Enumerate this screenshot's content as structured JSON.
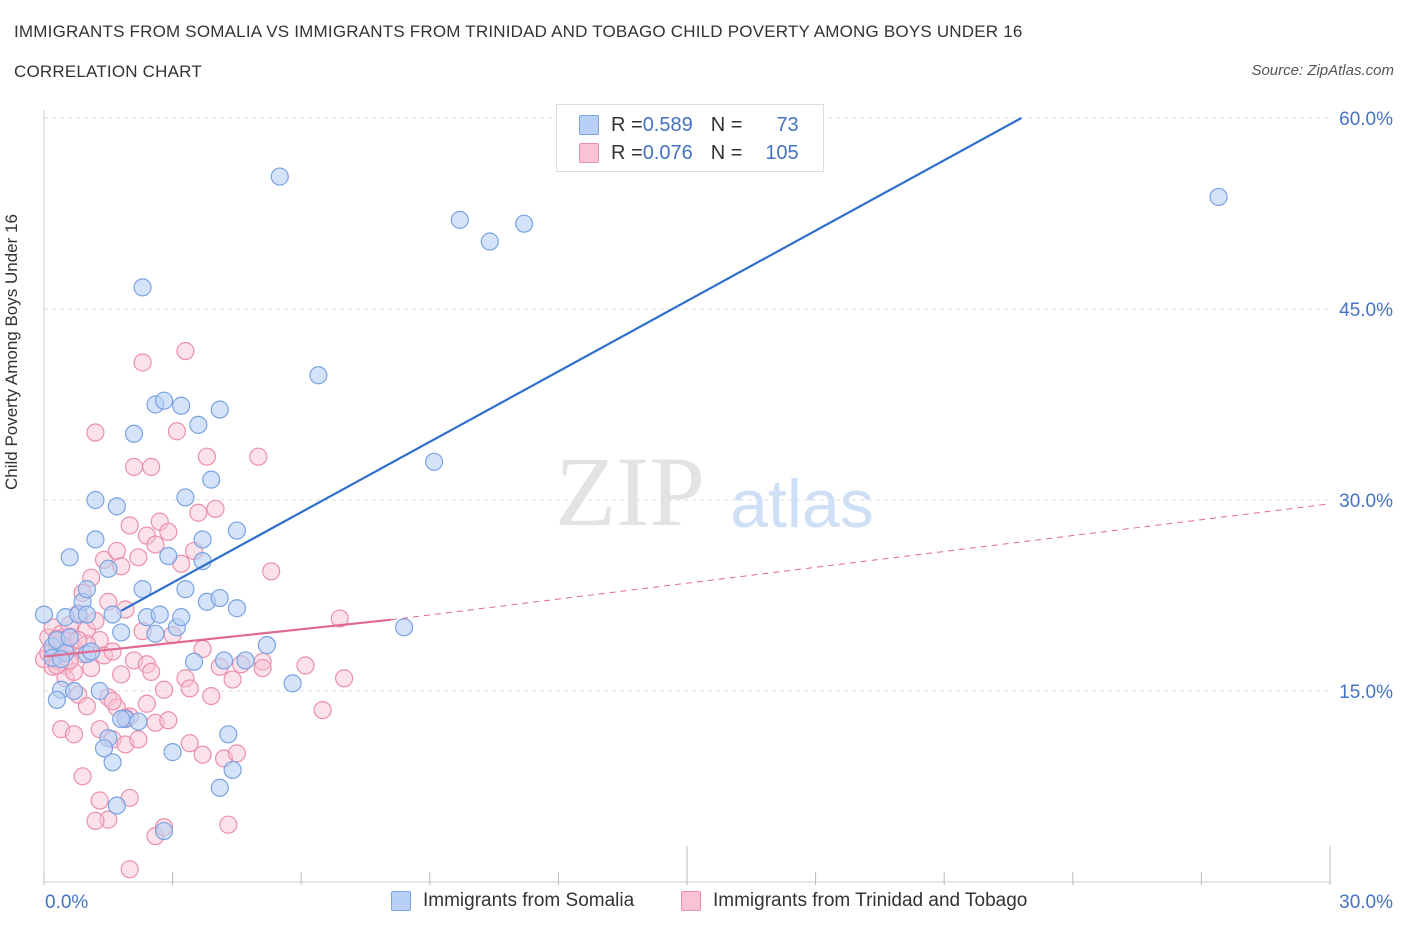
{
  "header": {
    "title": "IMMIGRANTS FROM SOMALIA VS IMMIGRANTS FROM TRINIDAD AND TOBAGO CHILD POVERTY AMONG BOYS UNDER 16",
    "subtitle": "CORRELATION CHART",
    "source": "Source: ZipAtlas.com"
  },
  "watermark": {
    "zip": "ZIP",
    "atlas": "atlas"
  },
  "legend": {
    "rows": [
      {
        "r_label": "R = ",
        "r_value": "0.589",
        "n_label": "N = ",
        "n_value": "73"
      },
      {
        "r_label": "R = ",
        "r_value": "0.076",
        "n_label": "N = ",
        "n_value": "105"
      }
    ]
  },
  "colors": {
    "somalia_fill": "#b8d0f5",
    "somalia_stroke": "#7aa3e0",
    "somalia_line": "#2f6fcc",
    "trinidad_fill": "#f8c4d4",
    "trinidad_stroke": "#ec8fac",
    "trinidad_line": "#e06a92",
    "axis_label": "#4472c4",
    "grid": "#dddddd"
  },
  "chart_data": {
    "type": "scatter",
    "title": "IMMIGRANTS FROM SOMALIA VS IMMIGRANTS FROM TRINIDAD AND TOBAGO CHILD POVERTY AMONG BOYS UNDER 16",
    "ylabel": "Child Poverty Among Boys Under 16",
    "xlabel": "",
    "xlim": [
      0,
      30
    ],
    "ylim": [
      0,
      60
    ],
    "x_tick_labels": [
      "0.0%",
      "30.0%"
    ],
    "y_ticks": [
      15,
      30,
      45,
      60
    ],
    "y_tick_labels": [
      "15.0%",
      "30.0%",
      "45.0%",
      "60.0%"
    ],
    "grid": true,
    "legend_position": "top-center",
    "series": [
      {
        "name": "Immigrants from Somalia",
        "R": 0.589,
        "N": 73,
        "trend": {
          "x": [
            1.8,
            22.8
          ],
          "y": [
            21.3,
            60.0
          ]
        },
        "points": [
          [
            0.0,
            21.0
          ],
          [
            0.2,
            18.5
          ],
          [
            0.3,
            19.0
          ],
          [
            0.2,
            17.6
          ],
          [
            0.4,
            15.1
          ],
          [
            0.5,
            20.8
          ],
          [
            0.6,
            25.5
          ],
          [
            0.7,
            15.0
          ],
          [
            0.8,
            21.0
          ],
          [
            1.0,
            17.9
          ],
          [
            0.9,
            22.0
          ],
          [
            1.0,
            23.0
          ],
          [
            1.0,
            21.0
          ],
          [
            1.2,
            26.9
          ],
          [
            1.2,
            30.0
          ],
          [
            1.3,
            15.0
          ],
          [
            1.5,
            24.6
          ],
          [
            1.6,
            21.0
          ],
          [
            1.7,
            29.5
          ],
          [
            1.8,
            19.6
          ],
          [
            1.9,
            12.8
          ],
          [
            2.1,
            35.2
          ],
          [
            2.3,
            23.0
          ],
          [
            2.4,
            20.8
          ],
          [
            2.6,
            19.5
          ],
          [
            2.6,
            37.5
          ],
          [
            2.7,
            21.0
          ],
          [
            2.8,
            37.8
          ],
          [
            2.9,
            25.6
          ],
          [
            3.1,
            20.0
          ],
          [
            3.2,
            37.4
          ],
          [
            3.2,
            20.8
          ],
          [
            3.3,
            30.2
          ],
          [
            3.3,
            23.0
          ],
          [
            3.5,
            17.3
          ],
          [
            3.6,
            35.9
          ],
          [
            3.7,
            26.9
          ],
          [
            3.7,
            25.2
          ],
          [
            3.8,
            22.0
          ],
          [
            3.9,
            31.6
          ],
          [
            4.1,
            37.1
          ],
          [
            4.1,
            22.3
          ],
          [
            4.2,
            17.4
          ],
          [
            4.4,
            8.8
          ],
          [
            4.5,
            21.5
          ],
          [
            4.5,
            27.6
          ],
          [
            4.7,
            17.4
          ],
          [
            5.2,
            18.6
          ],
          [
            5.5,
            55.4
          ],
          [
            5.8,
            15.6
          ],
          [
            6.4,
            39.8
          ],
          [
            8.4,
            20.0
          ],
          [
            9.1,
            33.0
          ],
          [
            9.7,
            52.0
          ],
          [
            10.4,
            50.3
          ],
          [
            11.2,
            51.7
          ],
          [
            27.4,
            53.8
          ],
          [
            2.3,
            46.7
          ],
          [
            1.5,
            11.3
          ],
          [
            1.7,
            6.0
          ],
          [
            2.2,
            12.6
          ],
          [
            1.8,
            12.8
          ],
          [
            1.6,
            9.4
          ],
          [
            1.4,
            10.5
          ],
          [
            3.0,
            10.2
          ],
          [
            4.3,
            11.6
          ],
          [
            4.1,
            7.4
          ],
          [
            0.3,
            14.3
          ],
          [
            0.5,
            18.0
          ],
          [
            2.8,
            4.0
          ],
          [
            0.4,
            17.5
          ],
          [
            0.6,
            19.2
          ],
          [
            1.1,
            18.1
          ]
        ]
      },
      {
        "name": "Immigrants from Trinidad and Tobago",
        "R": 0.076,
        "N": 105,
        "trend": {
          "x": [
            0.0,
            8.1
          ],
          "y": [
            17.7,
            20.6
          ]
        },
        "trend_extended": {
          "x": [
            8.1,
            30.0
          ],
          "y": [
            20.6,
            29.7
          ]
        },
        "points": [
          [
            0.0,
            17.5
          ],
          [
            0.1,
            18.0
          ],
          [
            0.1,
            19.2
          ],
          [
            0.2,
            16.9
          ],
          [
            0.2,
            20.0
          ],
          [
            0.3,
            17.4
          ],
          [
            0.3,
            18.6
          ],
          [
            0.4,
            17.8
          ],
          [
            0.4,
            19.5
          ],
          [
            0.5,
            17.0
          ],
          [
            0.5,
            16.0
          ],
          [
            0.6,
            19.3
          ],
          [
            0.6,
            20.2
          ],
          [
            0.7,
            16.5
          ],
          [
            0.7,
            18.4
          ],
          [
            0.8,
            21.1
          ],
          [
            0.8,
            14.7
          ],
          [
            0.9,
            17.9
          ],
          [
            0.9,
            22.7
          ],
          [
            1.0,
            19.8
          ],
          [
            1.0,
            13.8
          ],
          [
            1.1,
            16.8
          ],
          [
            1.1,
            23.9
          ],
          [
            1.2,
            20.5
          ],
          [
            1.2,
            35.3
          ],
          [
            1.3,
            19.0
          ],
          [
            1.3,
            12.0
          ],
          [
            1.4,
            17.8
          ],
          [
            1.4,
            25.3
          ],
          [
            1.5,
            14.5
          ],
          [
            1.5,
            22.0
          ],
          [
            1.6,
            18.1
          ],
          [
            1.6,
            11.2
          ],
          [
            1.7,
            26.0
          ],
          [
            1.7,
            13.7
          ],
          [
            1.8,
            24.8
          ],
          [
            1.8,
            16.3
          ],
          [
            1.9,
            10.8
          ],
          [
            1.9,
            21.4
          ],
          [
            2.0,
            28.0
          ],
          [
            2.0,
            13.0
          ],
          [
            2.1,
            32.6
          ],
          [
            2.1,
            17.4
          ],
          [
            2.2,
            25.5
          ],
          [
            2.2,
            11.2
          ],
          [
            2.3,
            40.8
          ],
          [
            2.3,
            19.7
          ],
          [
            2.4,
            27.2
          ],
          [
            2.4,
            17.1
          ],
          [
            2.5,
            32.6
          ],
          [
            2.5,
            16.5
          ],
          [
            2.6,
            26.5
          ],
          [
            2.6,
            12.5
          ],
          [
            2.7,
            28.3
          ],
          [
            2.8,
            15.1
          ],
          [
            2.9,
            27.5
          ],
          [
            3.0,
            19.4
          ],
          [
            3.1,
            35.4
          ],
          [
            3.2,
            25.0
          ],
          [
            3.3,
            41.7
          ],
          [
            3.3,
            16.0
          ],
          [
            3.4,
            10.9
          ],
          [
            3.5,
            26.0
          ],
          [
            3.6,
            29.0
          ],
          [
            3.7,
            18.3
          ],
          [
            3.8,
            33.4
          ],
          [
            3.9,
            14.6
          ],
          [
            4.0,
            29.3
          ],
          [
            4.1,
            16.9
          ],
          [
            4.2,
            9.7
          ],
          [
            4.3,
            4.5
          ],
          [
            4.4,
            15.9
          ],
          [
            4.6,
            17.1
          ],
          [
            5.0,
            33.4
          ],
          [
            5.1,
            17.3
          ],
          [
            5.1,
            16.8
          ],
          [
            5.3,
            24.4
          ],
          [
            6.1,
            17.0
          ],
          [
            6.5,
            13.5
          ],
          [
            6.9,
            20.7
          ],
          [
            7.0,
            16.0
          ],
          [
            0.9,
            8.3
          ],
          [
            1.3,
            6.4
          ],
          [
            1.5,
            4.9
          ],
          [
            2.0,
            6.6
          ],
          [
            2.6,
            3.6
          ],
          [
            2.8,
            4.3
          ],
          [
            2.0,
            1.0
          ],
          [
            1.2,
            4.8
          ],
          [
            0.4,
            12.0
          ],
          [
            0.7,
            11.6
          ],
          [
            1.6,
            14.2
          ],
          [
            3.7,
            10.0
          ],
          [
            0.2,
            18.2
          ],
          [
            0.3,
            17.0
          ],
          [
            0.5,
            18.5
          ],
          [
            0.6,
            17.4
          ],
          [
            1.0,
            18.7
          ],
          [
            0.8,
            19.0
          ],
          [
            1.9,
            12.9
          ],
          [
            2.4,
            14.0
          ],
          [
            3.4,
            15.2
          ],
          [
            4.5,
            10.1
          ],
          [
            2.9,
            12.7
          ],
          [
            0.3,
            19.1
          ]
        ]
      }
    ]
  },
  "bottom_legend": {
    "items": [
      {
        "label": "Immigrants from Somalia"
      },
      {
        "label": "Immigrants from Trinidad and Tobago"
      }
    ]
  }
}
